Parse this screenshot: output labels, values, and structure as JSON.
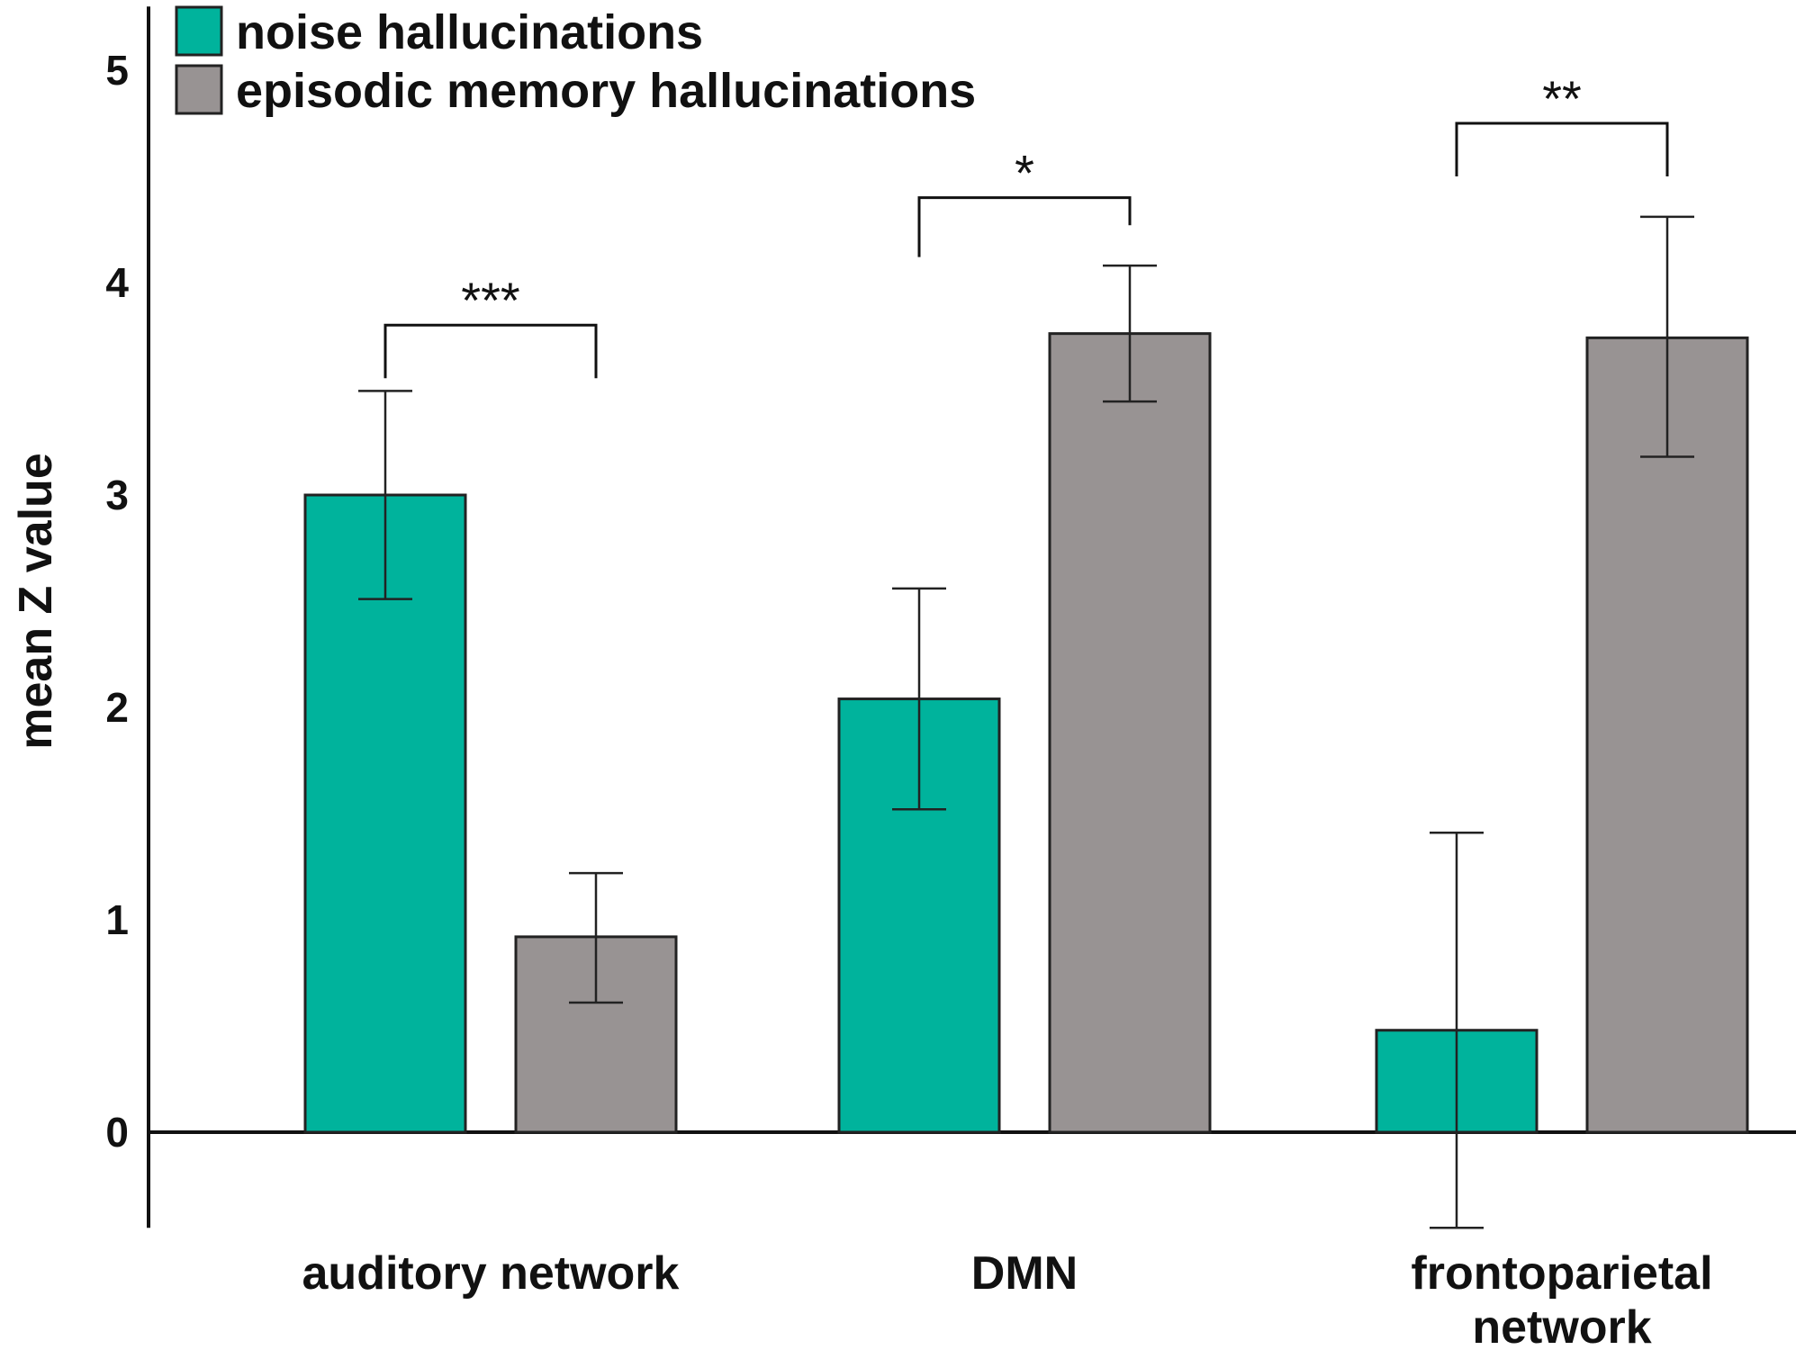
{
  "chart_data": {
    "type": "bar",
    "title": "",
    "xlabel": "",
    "ylabel": "mean Z value",
    "ylim": [
      -0.45,
      5.3
    ],
    "yticks": [
      0,
      1,
      2,
      3,
      4,
      5
    ],
    "yticks_text": [
      "0",
      "1",
      "2",
      "3",
      "4",
      "5"
    ],
    "grid": false,
    "legend_position": "top-left",
    "categories": [
      [
        "auditory network"
      ],
      [
        "DMN"
      ],
      [
        "frontoparietal",
        "network"
      ]
    ],
    "series": [
      {
        "name": "noise hallucinations",
        "color": "#00b39c",
        "values": [
          3.0,
          2.04,
          0.48
        ],
        "err_low": [
          2.51,
          1.52,
          -0.45
        ],
        "err_high": [
          3.49,
          2.56,
          1.41
        ]
      },
      {
        "name": "episodic memory hallucinations",
        "color": "#989393",
        "values": [
          0.92,
          3.76,
          3.74
        ],
        "err_low": [
          0.61,
          3.44,
          3.18
        ],
        "err_high": [
          1.22,
          4.08,
          4.31
        ]
      }
    ],
    "significance": [
      {
        "category_index": 0,
        "label": "***",
        "y": 3.8,
        "left_end": 3.55,
        "right_end": 3.55
      },
      {
        "category_index": 1,
        "label": "*",
        "y": 4.4,
        "left_end": 4.12,
        "right_end": 4.27
      },
      {
        "category_index": 2,
        "label": "**",
        "y": 4.75,
        "left_end": 4.5,
        "right_end": 4.5
      }
    ]
  }
}
